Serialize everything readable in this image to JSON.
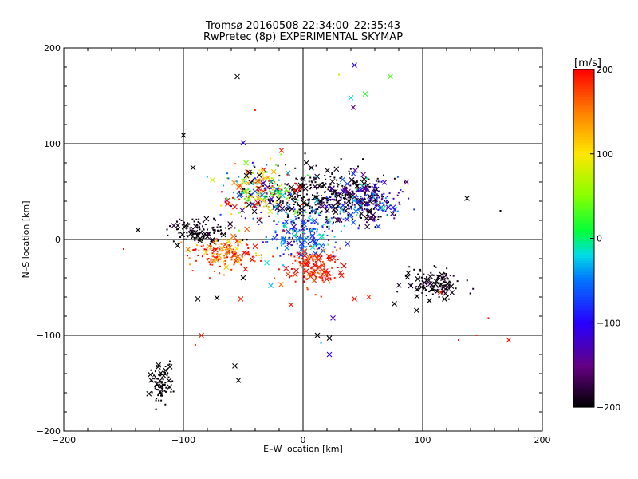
{
  "chart_data": {
    "type": "scatter",
    "title": "Tromsø 20160508 22:34:00–22:35:43",
    "subtitle": "RwPretec (8p) EXPERIMENTAL SKYMAP",
    "xlabel": "E–W location [km]",
    "ylabel": "N–S location [km]",
    "xlim": [
      -200,
      200
    ],
    "ylim": [
      -200,
      200
    ],
    "xticks": [
      -200,
      -100,
      0,
      100,
      200
    ],
    "yticks": [
      -200,
      -100,
      0,
      100,
      200
    ],
    "grid": true,
    "colorbar": {
      "label": "[m/s]",
      "range": [
        -200,
        200
      ],
      "ticks": [
        200,
        100,
        0,
        -100,
        -200
      ],
      "colormap": "rainbow (black → purple → blue → cyan → green → yellow → orange → red)"
    },
    "marker_types": [
      "x (large)",
      "· (small dot)"
    ],
    "clusters": [
      {
        "center_x": 0,
        "center_y": 5,
        "spread_x": 14,
        "spread_y": 12,
        "velocity": -60,
        "velocity_spread": 40
      },
      {
        "center_x": 10,
        "center_y": -30,
        "spread_x": 12,
        "spread_y": 10,
        "velocity": 185,
        "velocity_spread": 20
      },
      {
        "center_x": 18,
        "center_y": 45,
        "spread_x": 25,
        "spread_y": 14,
        "velocity": -195,
        "velocity_spread": 10
      },
      {
        "center_x": 50,
        "center_y": 40,
        "spread_x": 18,
        "spread_y": 12,
        "velocity": -120,
        "velocity_spread": 60
      },
      {
        "center_x": -85,
        "center_y": 10,
        "spread_x": 14,
        "spread_y": 7,
        "velocity": -195,
        "velocity_spread": 10
      },
      {
        "center_x": -65,
        "center_y": -15,
        "spread_x": 15,
        "spread_y": 8,
        "velocity": 175,
        "velocity_spread": 40
      },
      {
        "center_x": 110,
        "center_y": -45,
        "spread_x": 12,
        "spread_y": 8,
        "velocity": -195,
        "velocity_spread": 10
      },
      {
        "center_x": -35,
        "center_y": 50,
        "spread_x": 15,
        "spread_y": 15,
        "velocity": 20,
        "velocity_spread": 150
      },
      {
        "center_x": -120,
        "center_y": -150,
        "spread_x": 5,
        "spread_y": 10,
        "velocity": -200,
        "velocity_spread": 5
      }
    ],
    "points": [
      {
        "x": -55,
        "y": 170,
        "v": -200,
        "m": "x"
      },
      {
        "x": 43,
        "y": 182,
        "v": -100,
        "m": "x"
      },
      {
        "x": 73,
        "y": 170,
        "v": 30,
        "m": "x"
      },
      {
        "x": 30,
        "y": 172,
        "v": 80,
        "m": "."
      },
      {
        "x": 52,
        "y": 152,
        "v": 20,
        "m": "x"
      },
      {
        "x": 40,
        "y": 148,
        "v": -20,
        "m": "x"
      },
      {
        "x": 42,
        "y": 138,
        "v": -160,
        "m": "x"
      },
      {
        "x": -100,
        "y": 109,
        "v": -200,
        "m": "x"
      },
      {
        "x": -40,
        "y": 135,
        "v": 180,
        "m": "."
      },
      {
        "x": -50,
        "y": 101,
        "v": -110,
        "m": "x"
      },
      {
        "x": -92,
        "y": 75,
        "v": -200,
        "m": "x"
      },
      {
        "x": -45,
        "y": 70,
        "v": -200,
        "m": "x"
      },
      {
        "x": -18,
        "y": 93,
        "v": 190,
        "m": "x"
      },
      {
        "x": 137,
        "y": 43,
        "v": -200,
        "m": "x"
      },
      {
        "x": 165,
        "y": 30,
        "v": -200,
        "m": "."
      },
      {
        "x": -138,
        "y": 10,
        "v": -200,
        "m": "x"
      },
      {
        "x": -150,
        "y": -10,
        "v": 195,
        "m": "."
      },
      {
        "x": -88,
        "y": -62,
        "v": -200,
        "m": "x"
      },
      {
        "x": -72,
        "y": -61,
        "v": -200,
        "m": "x"
      },
      {
        "x": -52,
        "y": -62,
        "v": 190,
        "m": "x"
      },
      {
        "x": -10,
        "y": -68,
        "v": 190,
        "m": "x"
      },
      {
        "x": 95,
        "y": -74,
        "v": -200,
        "m": "x"
      },
      {
        "x": 115,
        "y": -55,
        "v": 190,
        "m": "x"
      },
      {
        "x": 130,
        "y": -105,
        "v": 190,
        "m": "."
      },
      {
        "x": 145,
        "y": -100,
        "v": 185,
        "m": "."
      },
      {
        "x": 155,
        "y": -82,
        "v": 190,
        "m": "."
      },
      {
        "x": 172,
        "y": -105,
        "v": 195,
        "m": "x"
      },
      {
        "x": -85,
        "y": -100,
        "v": 190,
        "m": "x"
      },
      {
        "x": -90,
        "y": -110,
        "v": 180,
        "m": "."
      },
      {
        "x": 12,
        "y": -100,
        "v": -200,
        "m": "x"
      },
      {
        "x": 22,
        "y": -103,
        "v": -200,
        "m": "x"
      },
      {
        "x": 22,
        "y": -120,
        "v": -100,
        "m": "x"
      },
      {
        "x": 15,
        "y": -108,
        "v": -40,
        "m": "."
      },
      {
        "x": -57,
        "y": -132,
        "v": -200,
        "m": "x"
      },
      {
        "x": -54,
        "y": -147,
        "v": -200,
        "m": "x"
      },
      {
        "x": 43,
        "y": -62,
        "v": 195,
        "m": "x"
      },
      {
        "x": 55,
        "y": -60,
        "v": 185,
        "m": "x"
      },
      {
        "x": 25,
        "y": -82,
        "v": -130,
        "m": "x"
      },
      {
        "x": -27,
        "y": -48,
        "v": -30,
        "m": "x"
      },
      {
        "x": -50,
        "y": -40,
        "v": -200,
        "m": "x"
      },
      {
        "x": 88,
        "y": -35,
        "v": -200,
        "m": "x"
      }
    ]
  }
}
